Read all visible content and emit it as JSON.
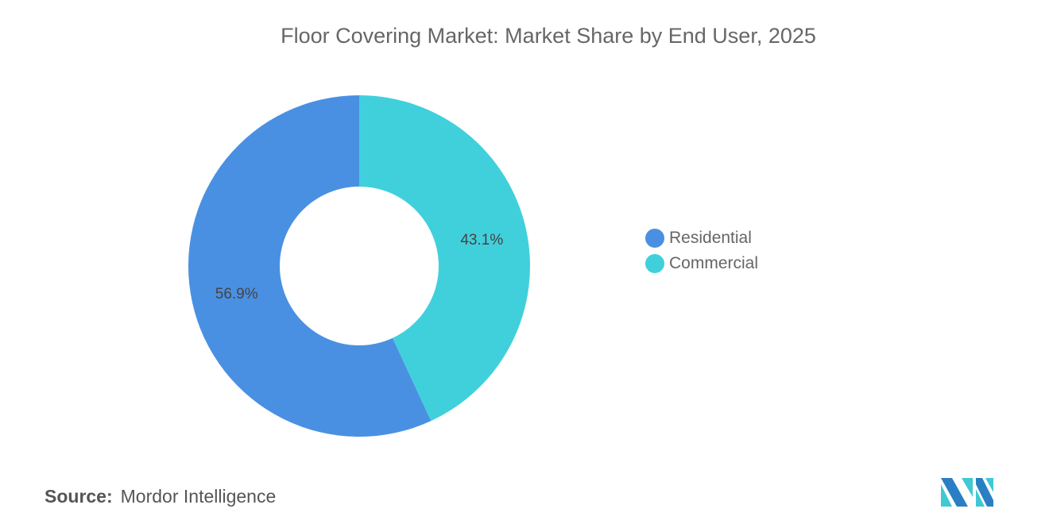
{
  "chart_data": {
    "type": "pie",
    "donut": true,
    "title": "Floor Covering Market: Market Share by End User, 2025",
    "slices": [
      {
        "name": "Commercial",
        "value": 43.1,
        "label": "43.1%",
        "color": "#40d0dc"
      },
      {
        "name": "Residential",
        "value": 56.9,
        "label": "56.9%",
        "color": "#4a90e2"
      }
    ],
    "legend": {
      "placement": "right",
      "items": [
        {
          "label": "Residential",
          "color": "#4a90e2"
        },
        {
          "label": "Commercial",
          "color": "#40d0dc"
        }
      ]
    }
  },
  "source": {
    "label": "Source:",
    "text": "Mordor Intelligence"
  },
  "logo": {
    "text": "Mordor Intelligence logo",
    "colors": [
      "#2a7fc4",
      "#40c8d4"
    ]
  }
}
